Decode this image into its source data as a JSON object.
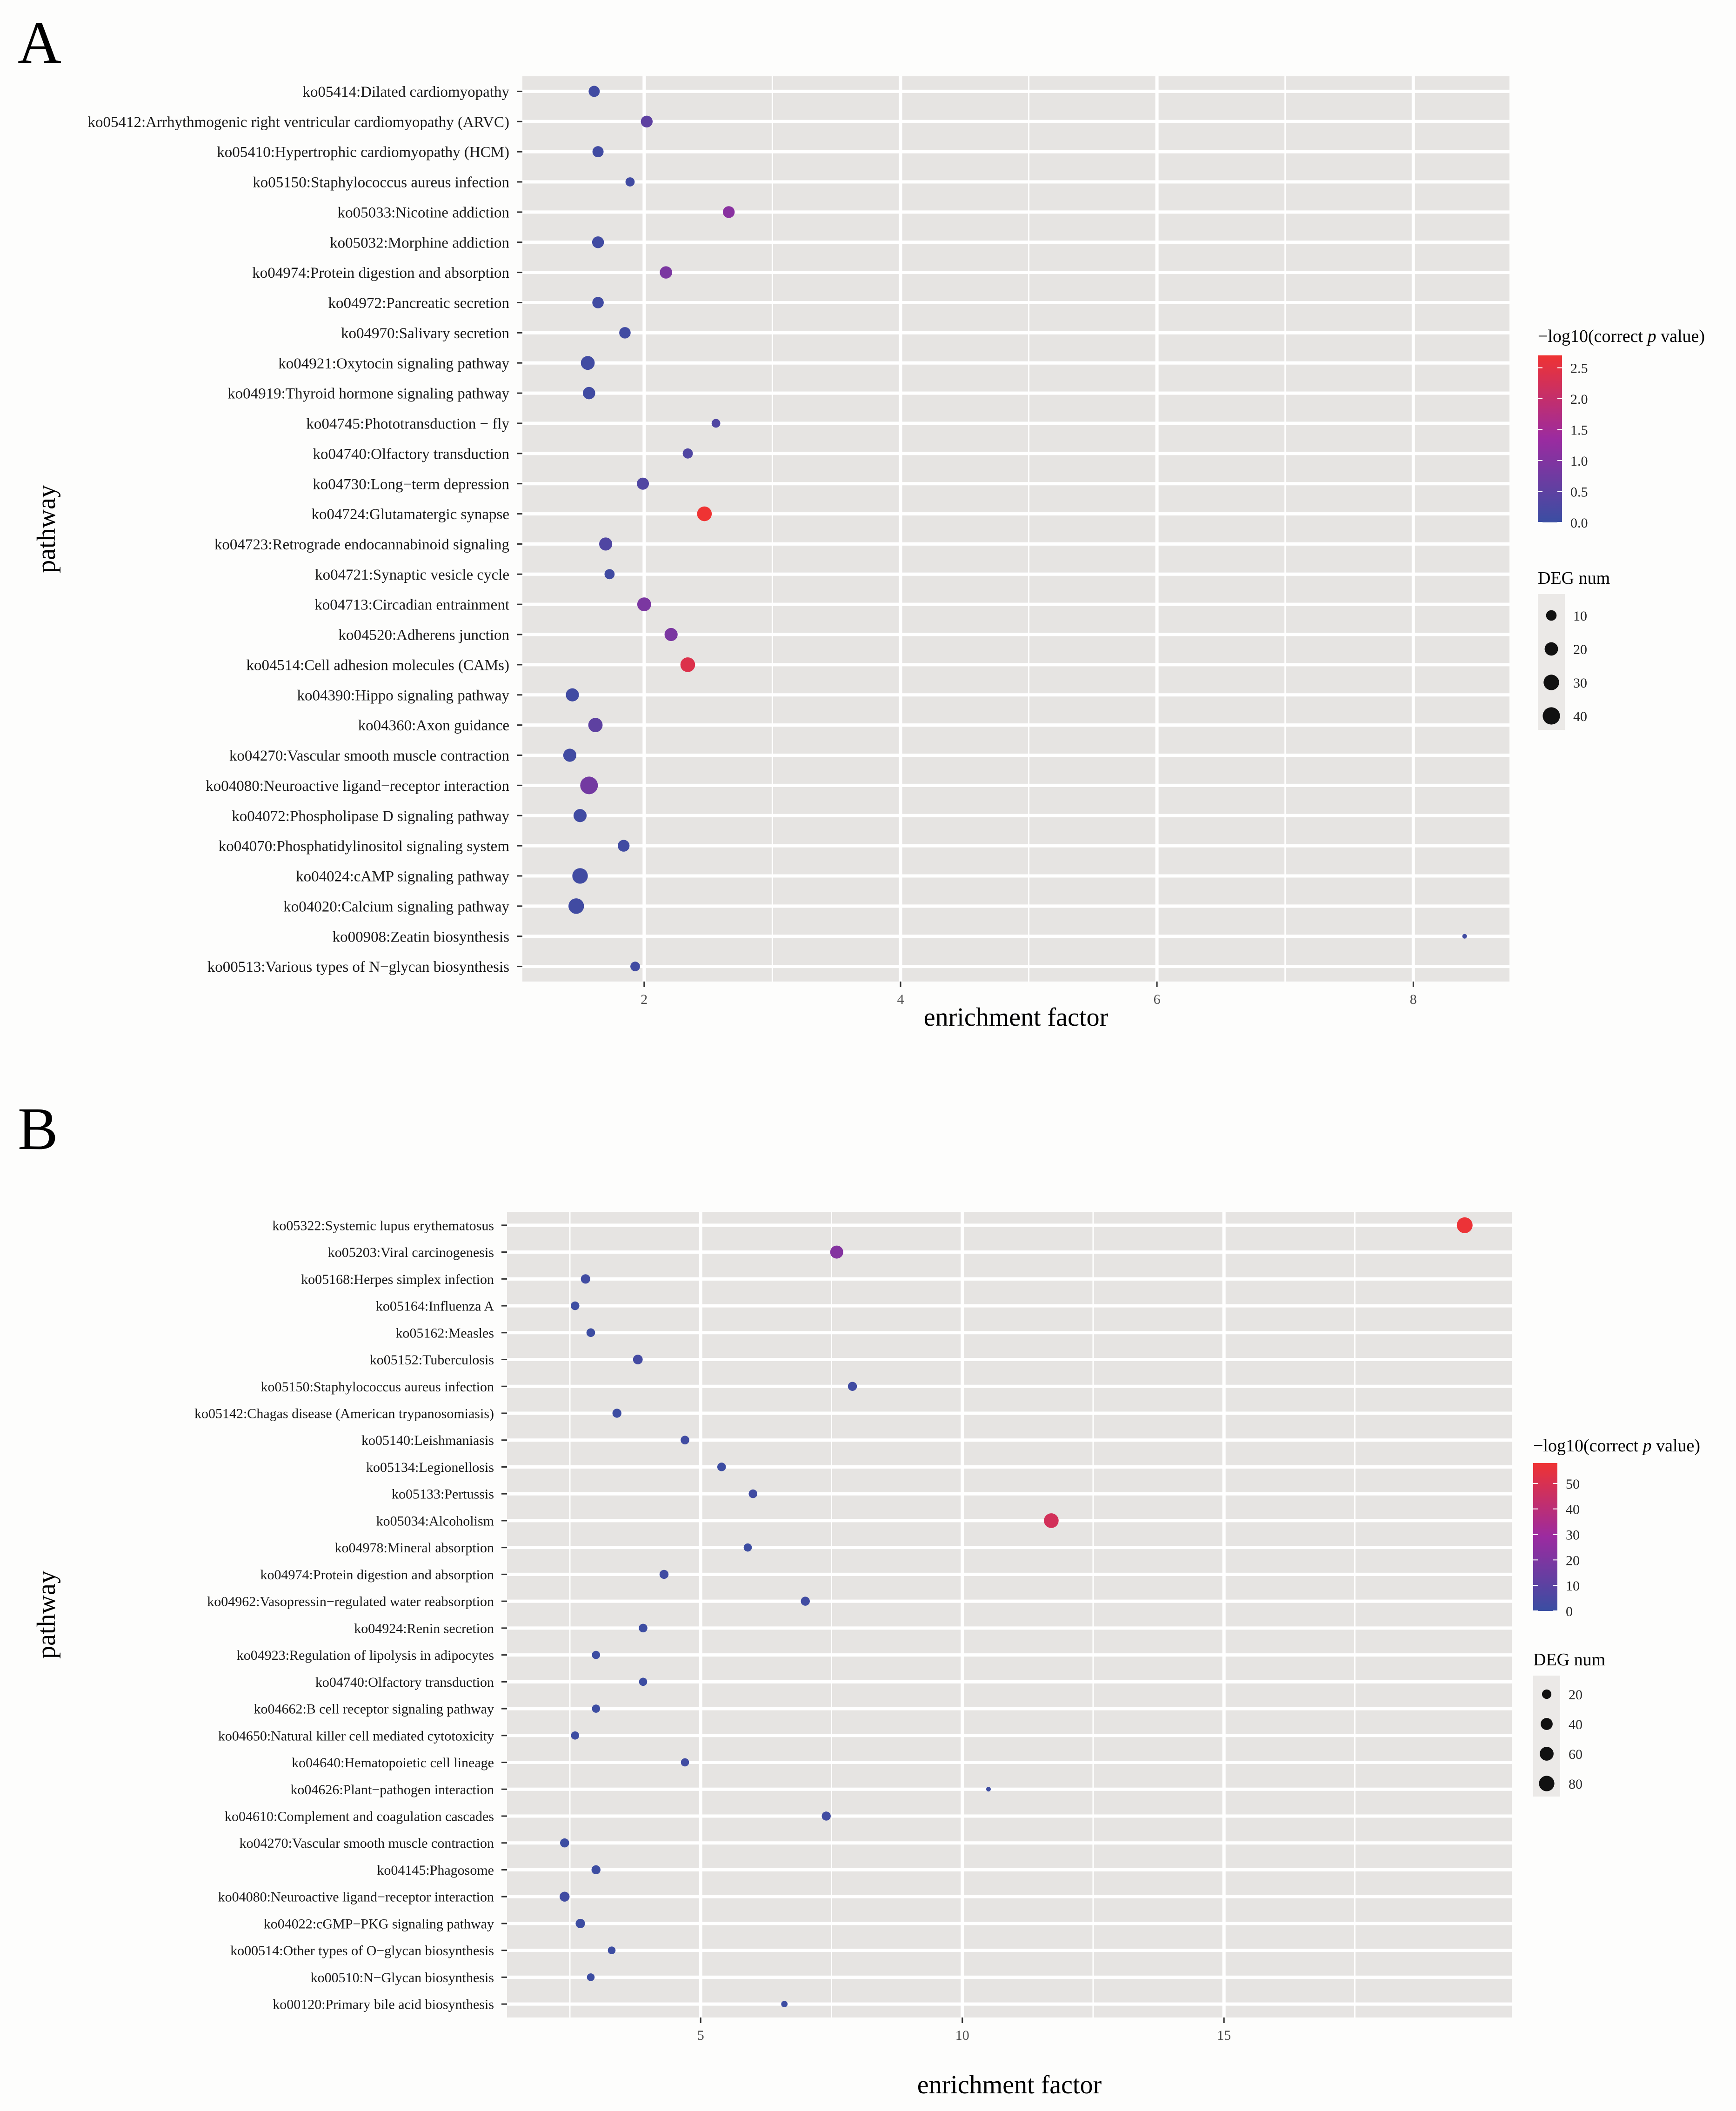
{
  "figure": {
    "panel_a_label": "A",
    "panel_b_label": "B"
  },
  "chart_data": [
    {
      "type": "scatter",
      "panel": "A",
      "xlabel": "enrichment factor",
      "ylabel": "pathway",
      "xlim": [
        1.05,
        8.75
      ],
      "xticks": [
        2,
        4,
        6,
        8
      ],
      "grid": true,
      "color_legend": {
        "title": "−log10(correct p value)",
        "title_prefix": "−log10(correct ",
        "title_italic": "p",
        "title_suffix": " value)",
        "min": 0,
        "max": 2.7,
        "ticks": [
          0.0,
          0.5,
          1.0,
          1.5,
          2.0,
          2.5
        ],
        "tick_labels": [
          "0.0",
          "0.5",
          "1.0",
          "1.5",
          "2.0",
          "2.5"
        ],
        "low_color": "#3a4ea2",
        "mid_color": "#9b2ba0",
        "high_color": "#ef3333"
      },
      "size_legend": {
        "title": "DEG num",
        "values": [
          10,
          20,
          30,
          40
        ]
      },
      "points": [
        {
          "pathway": "ko05414:Dilated cardiomyopathy",
          "x": 1.61,
          "p": 0.1,
          "n": 12
        },
        {
          "pathway": "ko05412:Arrhythmogenic right ventricular cardiomyopathy (ARVC)",
          "x": 2.02,
          "p": 0.5,
          "n": 14
        },
        {
          "pathway": "ko05410:Hypertrophic cardiomyopathy (HCM)",
          "x": 1.64,
          "p": 0.1,
          "n": 12
        },
        {
          "pathway": "ko05150:Staphylococcus aureus infection",
          "x": 1.89,
          "p": 0.1,
          "n": 7
        },
        {
          "pathway": "ko05033:Nicotine addiction",
          "x": 2.66,
          "p": 1.1,
          "n": 14
        },
        {
          "pathway": "ko05032:Morphine addiction",
          "x": 1.64,
          "p": 0.1,
          "n": 14
        },
        {
          "pathway": "ko04974:Protein digestion and absorption",
          "x": 2.17,
          "p": 0.9,
          "n": 16
        },
        {
          "pathway": "ko04972:Pancreatic secretion",
          "x": 1.64,
          "p": 0.1,
          "n": 13
        },
        {
          "pathway": "ko04970:Salivary secretion",
          "x": 1.85,
          "p": 0.1,
          "n": 13
        },
        {
          "pathway": "ko04921:Oxytocin signaling pathway",
          "x": 1.56,
          "p": 0.1,
          "n": 22
        },
        {
          "pathway": "ko04919:Thyroid hormone signaling pathway",
          "x": 1.57,
          "p": 0.1,
          "n": 16
        },
        {
          "pathway": "ko04745:Phototransduction − fly",
          "x": 2.56,
          "p": 0.3,
          "n": 6
        },
        {
          "pathway": "ko04740:Olfactory transduction",
          "x": 2.34,
          "p": 0.3,
          "n": 9
        },
        {
          "pathway": "ko04730:Long−term depression",
          "x": 1.99,
          "p": 0.3,
          "n": 15
        },
        {
          "pathway": "ko04724:Glutamatergic synapse",
          "x": 2.47,
          "p": 2.7,
          "n": 26
        },
        {
          "pathway": "ko04723:Retrograde endocannabinoid signaling",
          "x": 1.7,
          "p": 0.3,
          "n": 19
        },
        {
          "pathway": "ko04721:Synaptic vesicle cycle",
          "x": 1.73,
          "p": 0.1,
          "n": 9
        },
        {
          "pathway": "ko04713:Circadian entrainment",
          "x": 2.0,
          "p": 0.9,
          "n": 22
        },
        {
          "pathway": "ko04520:Adherens junction",
          "x": 2.21,
          "p": 0.9,
          "n": 19
        },
        {
          "pathway": "ko04514:Cell adhesion molecules (CAMs)",
          "x": 2.34,
          "p": 2.4,
          "n": 26
        },
        {
          "pathway": "ko04390:Hippo signaling pathway",
          "x": 1.44,
          "p": 0.1,
          "n": 19
        },
        {
          "pathway": "ko04360:Axon guidance",
          "x": 1.62,
          "p": 0.5,
          "n": 24
        },
        {
          "pathway": "ko04270:Vascular smooth muscle contraction",
          "x": 1.42,
          "p": 0.1,
          "n": 19
        },
        {
          "pathway": "ko04080:Neuroactive ligand−receptor interaction",
          "x": 1.57,
          "p": 0.8,
          "n": 42
        },
        {
          "pathway": "ko04072:Phospholipase D signaling pathway",
          "x": 1.5,
          "p": 0.1,
          "n": 19
        },
        {
          "pathway": "ko04070:Phosphatidylinositol signaling system",
          "x": 1.84,
          "p": 0.1,
          "n": 14
        },
        {
          "pathway": "ko04024:cAMP signaling pathway",
          "x": 1.5,
          "p": 0.1,
          "n": 30
        },
        {
          "pathway": "ko04020:Calcium signaling pathway",
          "x": 1.47,
          "p": 0.1,
          "n": 30
        },
        {
          "pathway": "ko00908:Zeatin biosynthesis",
          "x": 8.4,
          "p": 0.1,
          "n": 2
        },
        {
          "pathway": "ko00513:Various types of N−glycan biosynthesis",
          "x": 1.93,
          "p": 0.1,
          "n": 8
        }
      ]
    },
    {
      "type": "scatter",
      "panel": "B",
      "xlabel": "enrichment factor",
      "ylabel": "pathway",
      "xlim": [
        1.3,
        20.5
      ],
      "xticks": [
        5,
        10,
        15
      ],
      "grid": true,
      "color_legend": {
        "title": "−log10(correct p value)",
        "title_prefix": "−log10(correct ",
        "title_italic": "p",
        "title_suffix": " value)",
        "min": 0,
        "max": 58,
        "ticks": [
          0,
          10,
          20,
          30,
          40,
          50
        ],
        "tick_labels": [
          "0",
          "10",
          "20",
          "30",
          "40",
          "50"
        ],
        "low_color": "#3a4ea2",
        "mid_color": "#9b2ba0",
        "high_color": "#ef3333"
      },
      "size_legend": {
        "title": "DEG num",
        "values": [
          20,
          40,
          60,
          80
        ]
      },
      "points": [
        {
          "pathway": "ko05322:Systemic lupus erythematosus",
          "x": 19.6,
          "p": 57,
          "n": 85
        },
        {
          "pathway": "ko05203:Viral carcinogenesis",
          "x": 7.6,
          "p": 22,
          "n": 50
        },
        {
          "pathway": "ko05168:Herpes simplex infection",
          "x": 2.8,
          "p": 2,
          "n": 20
        },
        {
          "pathway": "ko05164:Influenza A",
          "x": 2.6,
          "p": 1,
          "n": 16
        },
        {
          "pathway": "ko05162:Measles",
          "x": 2.9,
          "p": 1,
          "n": 16
        },
        {
          "pathway": "ko05152:Tuberculosis",
          "x": 3.8,
          "p": 3,
          "n": 22
        },
        {
          "pathway": "ko05150:Staphylococcus aureus infection",
          "x": 7.9,
          "p": 2,
          "n": 18
        },
        {
          "pathway": "ko05142:Chagas disease (American trypanosomiasis)",
          "x": 3.4,
          "p": 1,
          "n": 18
        },
        {
          "pathway": "ko05140:Leishmaniasis",
          "x": 4.7,
          "p": 2,
          "n": 16
        },
        {
          "pathway": "ko05134:Legionellosis",
          "x": 5.4,
          "p": 1,
          "n": 16
        },
        {
          "pathway": "ko05133:Pertussis",
          "x": 6.0,
          "p": 2,
          "n": 16
        },
        {
          "pathway": "ko05034:Alcoholism",
          "x": 11.7,
          "p": 48,
          "n": 70
        },
        {
          "pathway": "ko04978:Mineral absorption",
          "x": 5.9,
          "p": 1,
          "n": 14
        },
        {
          "pathway": "ko04974:Protein digestion and absorption",
          "x": 4.3,
          "p": 2,
          "n": 18
        },
        {
          "pathway": "ko04962:Vasopressin−regulated water reabsorption",
          "x": 7.0,
          "p": 2,
          "n": 18
        },
        {
          "pathway": "ko04924:Renin secretion",
          "x": 3.9,
          "p": 1,
          "n": 16
        },
        {
          "pathway": "ko04923:Regulation of lipolysis in adipocytes",
          "x": 3.0,
          "p": 1,
          "n": 14
        },
        {
          "pathway": "ko04740:Olfactory transduction",
          "x": 3.9,
          "p": 1,
          "n": 14
        },
        {
          "pathway": "ko04662:B cell receptor signaling pathway",
          "x": 3.0,
          "p": 1,
          "n": 14
        },
        {
          "pathway": "ko04650:Natural killer cell mediated cytotoxicity",
          "x": 2.6,
          "p": 1,
          "n": 14
        },
        {
          "pathway": "ko04640:Hematopoietic cell lineage",
          "x": 4.7,
          "p": 2,
          "n": 14
        },
        {
          "pathway": "ko04626:Plant−pathogen interaction",
          "x": 10.5,
          "p": 1,
          "n": 6
        },
        {
          "pathway": "ko04610:Complement and coagulation cascades",
          "x": 7.4,
          "p": 2,
          "n": 18
        },
        {
          "pathway": "ko04270:Vascular smooth muscle contraction",
          "x": 2.4,
          "p": 1,
          "n": 18
        },
        {
          "pathway": "ko04145:Phagosome",
          "x": 3.0,
          "p": 1,
          "n": 18
        },
        {
          "pathway": "ko04080:Neuroactive ligand−receptor interaction",
          "x": 2.4,
          "p": 2,
          "n": 24
        },
        {
          "pathway": "ko04022:cGMP−PKG signaling pathway",
          "x": 2.7,
          "p": 1,
          "n": 20
        },
        {
          "pathway": "ko00514:Other types of O−glycan biosynthesis",
          "x": 3.3,
          "p": 1,
          "n": 12
        },
        {
          "pathway": "ko00510:N−Glycan biosynthesis",
          "x": 2.9,
          "p": 1,
          "n": 12
        },
        {
          "pathway": "ko00120:Primary bile acid biosynthesis",
          "x": 6.6,
          "p": 1,
          "n": 8
        }
      ]
    }
  ]
}
